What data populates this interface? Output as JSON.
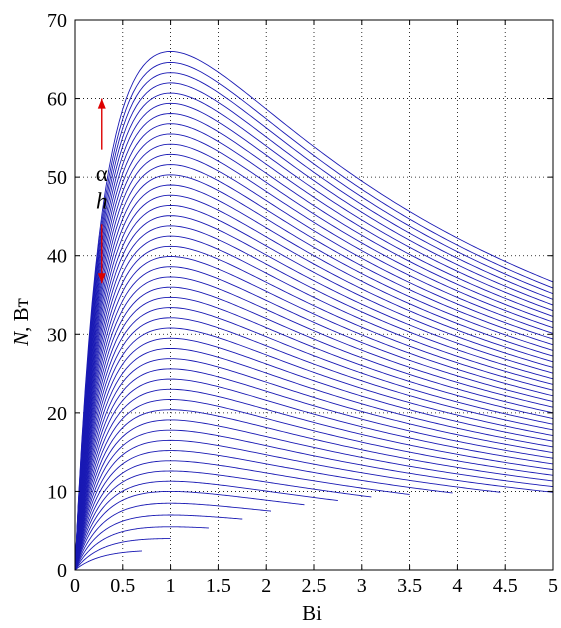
{
  "chart_data": {
    "type": "line",
    "xlabel": "Bi",
    "ylabel_var": "N",
    "ylabel_unit": ", Вт",
    "xlim": [
      0,
      5
    ],
    "ylim": [
      0,
      70
    ],
    "xticks": [
      0,
      0.5,
      1,
      1.5,
      2,
      2.5,
      3,
      3.5,
      4,
      4.5,
      5
    ],
    "xtick_labels": [
      "0",
      "0.5",
      "1",
      "1.5",
      "2",
      "2.5",
      "3",
      "3.5",
      "4",
      "4.5",
      "5"
    ],
    "yticks": [
      0,
      10,
      20,
      30,
      40,
      50,
      60,
      70
    ],
    "ytick_labels": [
      "0",
      "10",
      "20",
      "30",
      "40",
      "50",
      "60",
      "70"
    ],
    "grid": true,
    "grid_style": "dotted",
    "line_color": "#1a1ab4",
    "family_description": "N = 4·Nmax·Bi/(1+Bi)^2, one curve per Nmax, Bi from 0 to an end value",
    "curve_nmax": [
      2.5,
      4,
      5.5,
      7,
      8.5,
      10,
      11.3,
      12.6,
      13.9,
      15.2,
      16.5,
      17.8,
      19.1,
      20.4,
      21.7,
      23,
      24.3,
      25.6,
      26.9,
      28.2,
      29.5,
      30.8,
      32.1,
      33.4,
      34.7,
      36,
      37.3,
      38.6,
      39.9,
      41.2,
      42.5,
      43.8,
      45.1,
      46.4,
      47.7,
      49,
      50.3,
      51.6,
      52.9,
      54.2,
      55.5,
      56.8,
      58.1,
      59.4,
      60.7,
      62,
      63.3,
      64.6,
      66
    ],
    "curve_bi_end": [
      0.7,
      1.0,
      1.4,
      1.75,
      2.05,
      2.4,
      2.75,
      3.1,
      3.5,
      3.95,
      4.45,
      5,
      5,
      5,
      5,
      5,
      5,
      5,
      5,
      5,
      5,
      5,
      5,
      5,
      5,
      5,
      5,
      5,
      5,
      5,
      5,
      5,
      5,
      5,
      5,
      5,
      5,
      5,
      5,
      5,
      5,
      5,
      5,
      5,
      5,
      5,
      5,
      5,
      5
    ],
    "annotation": {
      "upper_label": "α",
      "lower_label": "h",
      "color": "#dd0000",
      "x": 0.28,
      "arrow_up_from": 53.5,
      "arrow_up_to": 60,
      "arrow_down_from": 44,
      "arrow_down_to": 36.5,
      "upper_label_y": 50.5,
      "lower_label_y": 47
    }
  }
}
